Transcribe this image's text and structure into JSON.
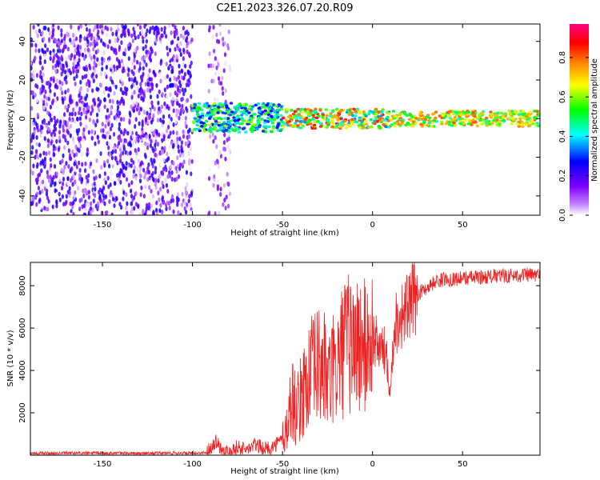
{
  "title": "C2E1.2023.326.07.20.R09",
  "chart_data": [
    {
      "type": "heatmap",
      "xlabel": "Height of straight line (km)",
      "ylabel": "Frequency (Hz)",
      "xlim": [
        -190,
        93
      ],
      "ylim": [
        -50,
        49
      ],
      "xticks": [
        -150,
        -100,
        -50,
        0,
        50
      ],
      "yticks": [
        -40,
        -20,
        0,
        20,
        40
      ],
      "colorbar": {
        "label": "Normalized spectral amplitude",
        "range": [
          0.0,
          0.97
        ],
        "ticks": [
          0.0,
          0.2,
          0.4,
          0.6,
          0.8
        ],
        "colormap": [
          "#ffffff",
          "#8000ff",
          "#0000ff",
          "#00ffff",
          "#00ff00",
          "#ffff00",
          "#ff8000",
          "#ff0000",
          "#ff0080"
        ]
      },
      "regions": [
        {
          "x": [
            -190,
            -100
          ],
          "freq_span": [
            -50,
            49
          ],
          "amplitude": [
            0.0,
            0.25
          ]
        },
        {
          "x": [
            -91,
            -79
          ],
          "freq_span": [
            -50,
            49
          ],
          "amplitude": [
            0.0,
            0.15
          ]
        },
        {
          "x": [
            -100,
            -50
          ],
          "freq_span": [
            -7,
            8
          ],
          "amplitude": [
            0.2,
            0.6
          ]
        },
        {
          "x": [
            -50,
            10
          ],
          "freq_span": [
            -5,
            5
          ],
          "amplitude": [
            0.3,
            0.9
          ]
        },
        {
          "x": [
            10,
            93
          ],
          "freq_span": [
            -4,
            4
          ],
          "amplitude": [
            0.4,
            0.8
          ]
        }
      ]
    },
    {
      "type": "line",
      "xlabel": "Height of straight line (km)",
      "ylabel": "SNR (10 * v/v)",
      "xlim": [
        -190,
        93
      ],
      "ylim": [
        0,
        9100
      ],
      "xticks": [
        -150,
        -100,
        -50,
        0,
        50
      ],
      "yticks": [
        2000,
        4000,
        6000,
        8000
      ],
      "line_color": "#ee2222",
      "series": [
        {
          "x": [
            -190,
            -170,
            -150,
            -130,
            -110,
            -100,
            -92,
            -87,
            -84,
            -80,
            -75,
            -70,
            -65,
            -60,
            -55,
            -50,
            -47,
            -45,
            -42,
            -38,
            -35,
            -30,
            -27,
            -25,
            -20,
            -15,
            -10,
            -5,
            0,
            5,
            8,
            10,
            12,
            15,
            20,
            25,
            30,
            35,
            40,
            50,
            60,
            70,
            80,
            93
          ],
          "y": [
            100,
            90,
            100,
            80,
            100,
            90,
            120,
            700,
            300,
            150,
            400,
            250,
            500,
            300,
            400,
            800,
            1400,
            2800,
            2000,
            3200,
            3800,
            4200,
            4200,
            3400,
            4200,
            5200,
            5300,
            5000,
            5500,
            5000,
            4800,
            3000,
            6200,
            6500,
            7000,
            7600,
            7900,
            8200,
            8300,
            8350,
            8400,
            8450,
            8500,
            8500
          ]
        }
      ]
    }
  ]
}
